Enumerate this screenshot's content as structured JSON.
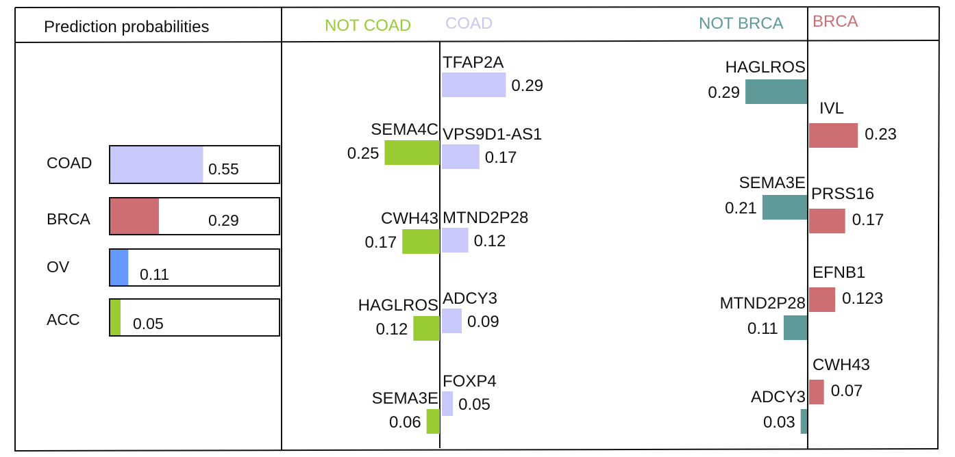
{
  "header": {
    "prob_title": "Prediction probabilities",
    "not_coad": "NOT COAD",
    "coad": "COAD",
    "not_brca": "NOT BRCA",
    "brca": "BRCA"
  },
  "colors": {
    "coad": "#c8c8fa",
    "brca": "#cc6e72",
    "ov": "#6699ff",
    "acc": "#99cc33",
    "not_coad": "#99cc33",
    "not_brca": "#5f9a98",
    "not_coad_header": "#99cc33",
    "coad_header": "#c8c8f0",
    "not_brca_header": "#5f9a98",
    "brca_header": "#cc6e72"
  },
  "chart_data": [
    {
      "type": "bar",
      "title": "Prediction probabilities",
      "categories": [
        "COAD",
        "BRCA",
        "OV",
        "ACC"
      ],
      "values": [
        0.55,
        0.29,
        0.11,
        0.05
      ],
      "value_labels": [
        "0.55",
        "0.29",
        "0.11",
        "0.05"
      ],
      "xlim": [
        0,
        1
      ]
    },
    {
      "type": "bar",
      "title": "NOT COAD / COAD",
      "series": [
        {
          "name": "NOT COAD",
          "categories": [
            "SEMA4C",
            "CWH43",
            "HAGLROS",
            "SEMA3E"
          ],
          "values": [
            0.25,
            0.17,
            0.12,
            0.06
          ],
          "value_labels": [
            "0.25",
            "0.17",
            "0.12",
            "0.06"
          ]
        },
        {
          "name": "COAD",
          "categories": [
            "TFAP2A",
            "VPS9D1-AS1",
            "MTND2P28",
            "ADCY3",
            "FOXP4"
          ],
          "values": [
            0.29,
            0.17,
            0.12,
            0.09,
            0.05
          ],
          "value_labels": [
            "0.29",
            "0.17",
            "0.12",
            "0.09",
            "0.05"
          ]
        }
      ]
    },
    {
      "type": "bar",
      "title": "NOT BRCA / BRCA",
      "series": [
        {
          "name": "NOT BRCA",
          "categories": [
            "HAGLROS",
            "SEMA3E",
            "MTND2P28",
            "ADCY3"
          ],
          "values": [
            0.29,
            0.21,
            0.11,
            0.03
          ],
          "value_labels": [
            "0.29",
            "0.21",
            "0.11",
            "0.03"
          ]
        },
        {
          "name": "BRCA",
          "categories": [
            "IVL",
            "PRSS16",
            "EFNB1",
            "CWH43"
          ],
          "values": [
            0.23,
            0.17,
            0.123,
            0.07
          ],
          "value_labels": [
            "0.23",
            "0.17",
            "0.123",
            "0.07"
          ]
        }
      ]
    }
  ]
}
